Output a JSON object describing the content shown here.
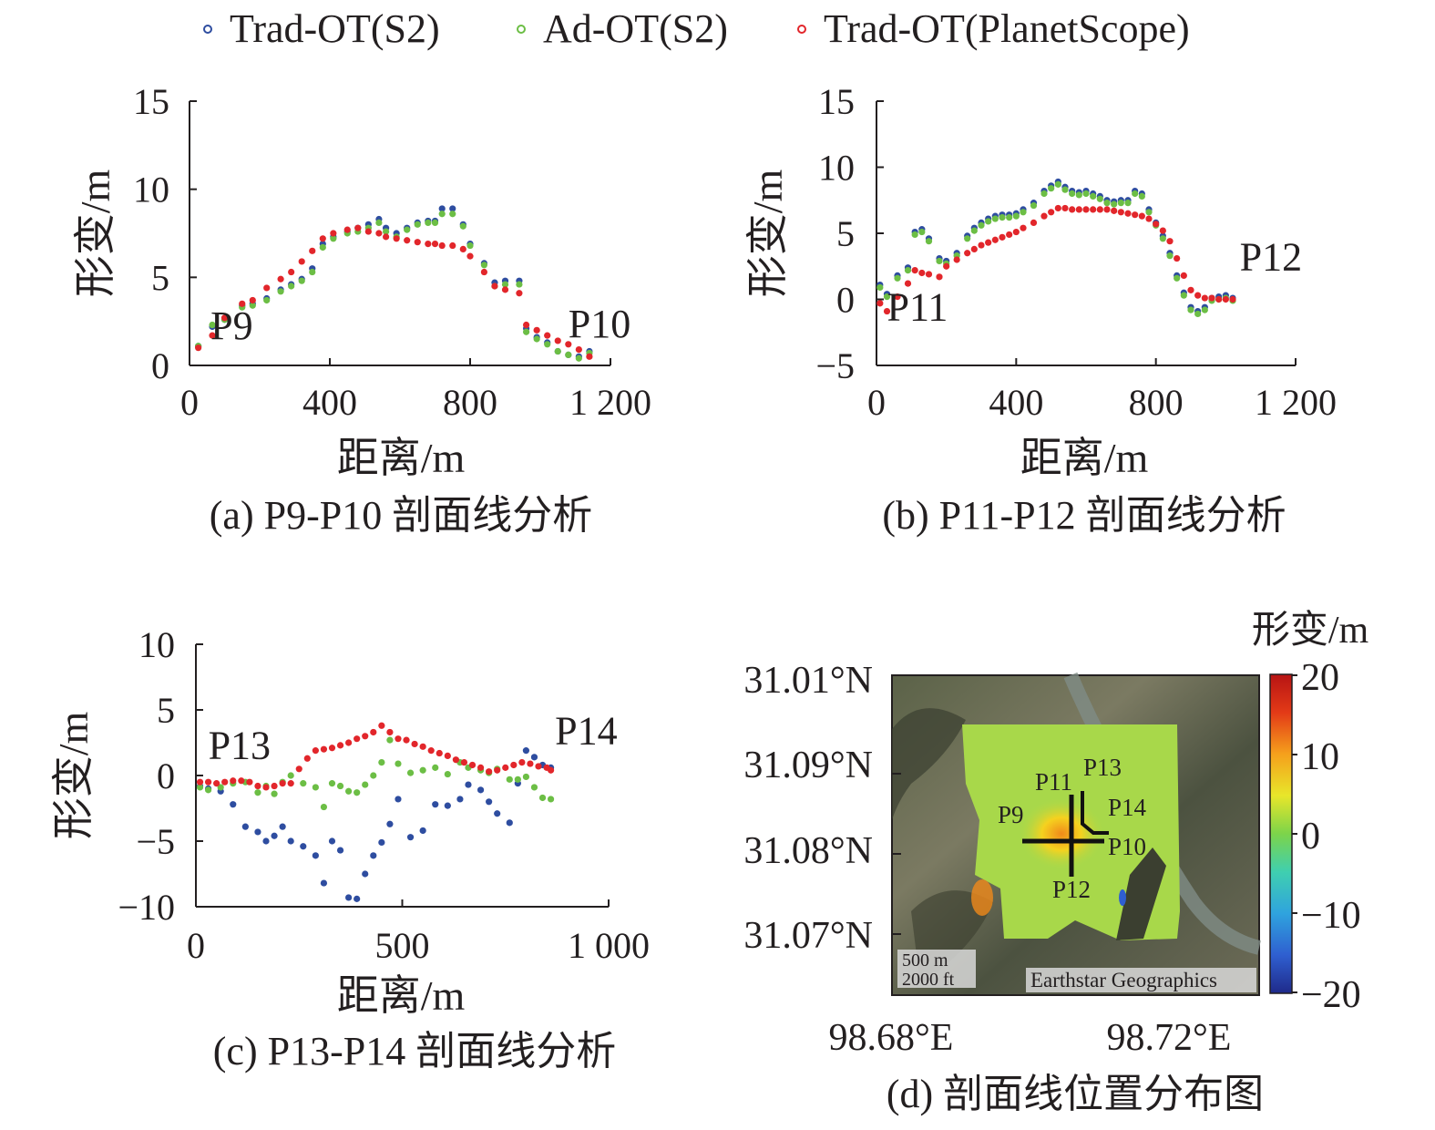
{
  "legend": [
    {
      "name": "Trad-OT(S2)",
      "color": "#2e4da0"
    },
    {
      "name": "Ad-OT(S2)",
      "color": "#6cbe45"
    },
    {
      "name": "Trad-OT(PlanetScope)",
      "color": "#e2262b"
    }
  ],
  "chart_data": [
    {
      "type": "scatter",
      "panel": "a",
      "caption": "(a) P9-P10 剖面线分析",
      "xlabel": "距离/m",
      "ylabel": "形变/m",
      "xlim": [
        0,
        1200
      ],
      "ylim": [
        0,
        15
      ],
      "xticks": [
        0,
        400,
        800,
        1200
      ],
      "xtick_labels": [
        "0",
        "400",
        "800",
        "1 200"
      ],
      "yticks": [
        0,
        5,
        10,
        15
      ],
      "ytick_labels": [
        "0",
        "5",
        "10",
        "15"
      ],
      "annotations": [
        {
          "text": "P9",
          "x": 60,
          "y": 1.5
        },
        {
          "text": "P10",
          "x": 1080,
          "y": 1.6
        }
      ],
      "series": [
        {
          "name": "Trad-OT(S2)",
          "x": [
            25,
            65,
            100,
            150,
            180,
            220,
            260,
            290,
            320,
            350,
            380,
            410,
            450,
            480,
            510,
            540,
            560,
            590,
            620,
            650,
            680,
            700,
            720,
            750,
            780,
            800,
            840,
            870,
            900,
            940,
            960,
            990,
            1020,
            1050,
            1080,
            1110,
            1140
          ],
          "y": [
            1.1,
            2.2,
            2.6,
            3.4,
            3.5,
            3.8,
            4.3,
            4.6,
            4.9,
            5.5,
            6.9,
            7.3,
            7.6,
            7.8,
            8.0,
            8.3,
            7.8,
            7.5,
            7.8,
            8.1,
            8.2,
            8.2,
            8.9,
            8.9,
            8.0,
            6.9,
            5.8,
            4.7,
            4.8,
            4.8,
            2.1,
            1.6,
            1.3,
            0.8,
            0.6,
            0.5,
            0.8
          ]
        },
        {
          "name": "Ad-OT(S2)",
          "x": [
            25,
            65,
            100,
            150,
            180,
            220,
            260,
            290,
            320,
            350,
            380,
            410,
            450,
            480,
            510,
            540,
            560,
            590,
            620,
            650,
            680,
            700,
            720,
            750,
            780,
            800,
            840,
            870,
            900,
            940,
            960,
            990,
            1020,
            1050,
            1080,
            1110,
            1140
          ],
          "y": [
            1.1,
            2.3,
            2.6,
            3.3,
            3.4,
            3.7,
            4.2,
            4.5,
            4.8,
            5.3,
            6.7,
            7.2,
            7.5,
            7.6,
            7.8,
            8.1,
            7.6,
            7.3,
            7.7,
            8.0,
            8.1,
            8.1,
            8.6,
            8.6,
            7.9,
            6.8,
            5.7,
            4.5,
            4.6,
            4.6,
            1.9,
            1.5,
            1.2,
            0.8,
            0.6,
            0.4,
            0.7
          ]
        },
        {
          "name": "Trad-OT(PlanetScope)",
          "x": [
            25,
            65,
            100,
            150,
            180,
            220,
            260,
            290,
            320,
            350,
            380,
            410,
            450,
            480,
            510,
            540,
            560,
            590,
            620,
            650,
            680,
            700,
            720,
            750,
            780,
            800,
            840,
            870,
            900,
            940,
            960,
            990,
            1020,
            1050,
            1080,
            1110,
            1140
          ],
          "y": [
            1.0,
            1.7,
            2.7,
            3.5,
            3.7,
            4.4,
            4.9,
            5.3,
            5.9,
            6.5,
            7.2,
            7.5,
            7.7,
            7.8,
            7.6,
            7.5,
            7.3,
            7.2,
            7.1,
            7.0,
            6.9,
            6.9,
            6.8,
            6.8,
            6.6,
            6.2,
            5.3,
            4.5,
            4.3,
            4.1,
            2.3,
            2.0,
            1.7,
            1.4,
            1.2,
            0.9,
            0.5
          ]
        }
      ]
    },
    {
      "type": "scatter",
      "panel": "b",
      "caption": "(b) P11-P12 剖面线分析",
      "xlabel": "距离/m",
      "ylabel": "形变/m",
      "xlim": [
        0,
        1200
      ],
      "ylim": [
        -5,
        15
      ],
      "xticks": [
        0,
        400,
        800,
        1200
      ],
      "xtick_labels": [
        "0",
        "400",
        "800",
        "1 200"
      ],
      "yticks": [
        -5,
        0,
        5,
        10,
        15
      ],
      "ytick_labels": [
        "−5",
        "0",
        "5",
        "10",
        "15"
      ],
      "annotations": [
        {
          "text": "P11",
          "x": 30,
          "y": -1.6
        },
        {
          "text": "P12",
          "x": 1040,
          "y": 2.2
        }
      ],
      "series": [
        {
          "name": "Trad-OT(S2)",
          "x": [
            10,
            30,
            60,
            90,
            110,
            130,
            150,
            180,
            200,
            230,
            260,
            280,
            300,
            320,
            340,
            360,
            380,
            400,
            420,
            450,
            480,
            500,
            520,
            540,
            560,
            580,
            600,
            620,
            640,
            660,
            680,
            700,
            720,
            740,
            760,
            780,
            800,
            820,
            840,
            860,
            880,
            900,
            920,
            940,
            960,
            980,
            1000,
            1020
          ],
          "y": [
            1.1,
            0.4,
            1.8,
            2.4,
            5.1,
            5.3,
            4.6,
            3.1,
            2.9,
            3.5,
            4.8,
            5.4,
            5.8,
            6.1,
            6.3,
            6.4,
            6.4,
            6.5,
            6.8,
            7.3,
            8.2,
            8.6,
            8.9,
            8.5,
            8.2,
            8.1,
            8.2,
            8.0,
            7.8,
            7.5,
            7.4,
            7.5,
            7.5,
            8.2,
            8.0,
            6.8,
            5.8,
            4.8,
            3.5,
            1.8,
            0.5,
            -0.6,
            -0.9,
            -0.6,
            0.1,
            0.2,
            0.3,
            0.1
          ]
        },
        {
          "name": "Ad-OT(S2)",
          "x": [
            10,
            30,
            60,
            90,
            110,
            130,
            150,
            180,
            200,
            230,
            260,
            280,
            300,
            320,
            340,
            360,
            380,
            400,
            420,
            450,
            480,
            500,
            520,
            540,
            560,
            580,
            600,
            620,
            640,
            660,
            680,
            700,
            720,
            740,
            760,
            780,
            800,
            820,
            840,
            860,
            880,
            900,
            920,
            940,
            960,
            980,
            1000,
            1020
          ],
          "y": [
            0.9,
            0.2,
            1.6,
            2.2,
            4.9,
            5.1,
            4.4,
            2.9,
            2.7,
            3.3,
            4.6,
            5.2,
            5.6,
            5.9,
            6.1,
            6.2,
            6.2,
            6.3,
            6.6,
            7.1,
            8.0,
            8.4,
            8.7,
            8.3,
            8.0,
            7.9,
            8.0,
            7.8,
            7.6,
            7.3,
            7.2,
            7.3,
            7.3,
            8.0,
            7.8,
            6.6,
            5.6,
            4.6,
            3.3,
            1.6,
            0.3,
            -0.8,
            -1.1,
            -0.8,
            -0.1,
            0.0,
            0.1,
            -0.1
          ]
        },
        {
          "name": "Trad-OT(PlanetScope)",
          "x": [
            10,
            30,
            60,
            90,
            110,
            130,
            150,
            180,
            200,
            230,
            260,
            280,
            300,
            320,
            340,
            360,
            380,
            400,
            420,
            450,
            480,
            500,
            520,
            540,
            560,
            580,
            600,
            620,
            640,
            660,
            680,
            700,
            720,
            740,
            760,
            780,
            800,
            820,
            840,
            860,
            880,
            900,
            920,
            940,
            960,
            980,
            1000,
            1020
          ],
          "y": [
            -0.3,
            -0.9,
            0.2,
            1.2,
            2.2,
            2.0,
            1.9,
            1.7,
            2.5,
            3.0,
            3.5,
            3.8,
            4.1,
            4.3,
            4.5,
            4.7,
            4.9,
            5.1,
            5.4,
            5.8,
            6.3,
            6.6,
            6.9,
            6.9,
            6.8,
            6.8,
            6.8,
            6.8,
            6.8,
            6.8,
            6.7,
            6.6,
            6.5,
            6.4,
            6.3,
            6.1,
            5.7,
            5.2,
            4.4,
            3.1,
            1.8,
            0.7,
            0.3,
            0.1,
            0.1,
            0.0,
            0.0,
            0.0
          ]
        }
      ]
    },
    {
      "type": "scatter",
      "panel": "c",
      "caption": "(c) P13-P14 剖面线分析",
      "xlabel": "距离/m",
      "ylabel": "形变/m",
      "xlim": [
        0,
        1000
      ],
      "ylim": [
        -10,
        10
      ],
      "xticks": [
        0,
        500,
        1000
      ],
      "xtick_labels": [
        "0",
        "500",
        "1 000"
      ],
      "yticks": [
        -10,
        -5,
        0,
        5,
        10
      ],
      "ytick_labels": [
        "−10",
        "−5",
        "0",
        "5",
        "10"
      ],
      "annotations": [
        {
          "text": "P13",
          "x": 30,
          "y": 1.3
        },
        {
          "text": "P14",
          "x": 870,
          "y": 2.4
        }
      ],
      "series": [
        {
          "name": "Trad-OT(S2)",
          "x": [
            10,
            30,
            60,
            90,
            120,
            150,
            170,
            190,
            210,
            230,
            260,
            290,
            310,
            330,
            350,
            370,
            390,
            410,
            430,
            450,
            470,
            490,
            520,
            550,
            580,
            610,
            640,
            660,
            690,
            710,
            730,
            760,
            780,
            800,
            820,
            840,
            860
          ],
          "y": [
            -0.8,
            -1.0,
            -1.2,
            -2.2,
            -3.9,
            -4.3,
            -5.0,
            -4.6,
            -3.9,
            -5.0,
            -5.4,
            -6.1,
            -8.2,
            -5.0,
            -5.7,
            -9.3,
            -9.4,
            -7.5,
            -6.1,
            -5.1,
            -3.7,
            -1.8,
            -4.7,
            -4.2,
            -2.2,
            -2.3,
            -1.8,
            -0.7,
            -1.1,
            -2.0,
            -2.9,
            -3.6,
            -0.6,
            1.9,
            1.4,
            0.8,
            0.6
          ]
        },
        {
          "name": "Ad-OT(S2)",
          "x": [
            10,
            30,
            60,
            90,
            120,
            150,
            170,
            190,
            210,
            230,
            260,
            290,
            310,
            330,
            350,
            370,
            390,
            410,
            430,
            450,
            470,
            490,
            520,
            550,
            580,
            610,
            640,
            660,
            690,
            710,
            730,
            760,
            780,
            800,
            820,
            840,
            860
          ],
          "y": [
            -0.9,
            -1.1,
            -0.9,
            -0.6,
            -0.5,
            -1.3,
            -0.8,
            -1.4,
            -0.5,
            0.0,
            -0.6,
            -0.9,
            -2.4,
            -0.6,
            -0.8,
            -1.2,
            -1.3,
            -0.7,
            0.0,
            1.0,
            2.7,
            0.9,
            0.2,
            0.4,
            0.6,
            0.1,
            1.0,
            0.6,
            0.4,
            0.2,
            0.5,
            -0.3,
            -0.3,
            -0.1,
            -0.9,
            -1.7,
            -1.8
          ]
        },
        {
          "name": "Trad-OT(PlanetScope)",
          "x": [
            10,
            30,
            50,
            70,
            90,
            110,
            130,
            150,
            170,
            190,
            210,
            230,
            250,
            270,
            290,
            310,
            330,
            350,
            370,
            390,
            410,
            430,
            450,
            470,
            490,
            510,
            530,
            550,
            570,
            590,
            610,
            630,
            650,
            670,
            690,
            710,
            730,
            750,
            770,
            790,
            810,
            830,
            850,
            860
          ],
          "y": [
            -0.5,
            -0.5,
            -0.6,
            -0.5,
            -0.4,
            -0.4,
            -0.5,
            -0.8,
            -0.9,
            -0.8,
            -0.6,
            -0.6,
            0.5,
            1.3,
            1.9,
            2.0,
            2.1,
            2.3,
            2.5,
            2.8,
            3.0,
            3.3,
            3.8,
            3.3,
            2.8,
            2.7,
            2.4,
            2.2,
            1.9,
            1.7,
            1.5,
            1.2,
            1.0,
            0.8,
            0.6,
            0.3,
            0.4,
            0.6,
            0.8,
            1.0,
            0.9,
            0.7,
            0.6,
            0.4
          ]
        }
      ]
    }
  ],
  "map": {
    "caption": "(d) 剖面线位置分布图",
    "lat_labels": [
      "31.01°N",
      "31.09°N",
      "31.08°N",
      "31.07°N"
    ],
    "lon_labels": [
      "98.68°E",
      "98.72°E"
    ],
    "colorbar_title": "形变/m",
    "colorbar_ticks": [
      "20",
      "10",
      "0",
      "−10",
      "−20"
    ],
    "colorbar_colors": [
      "#d21a1a",
      "#f08a1a",
      "#f5e51f",
      "#7cd44a",
      "#3fc7c9",
      "#2f6fd0",
      "#1f2a8a"
    ],
    "point_labels": [
      "P9",
      "P10",
      "P11",
      "P12",
      "P13",
      "P14"
    ],
    "scale_labels": [
      "500 m",
      "2000 ft"
    ],
    "attribution": "Earthstar Geographics"
  }
}
